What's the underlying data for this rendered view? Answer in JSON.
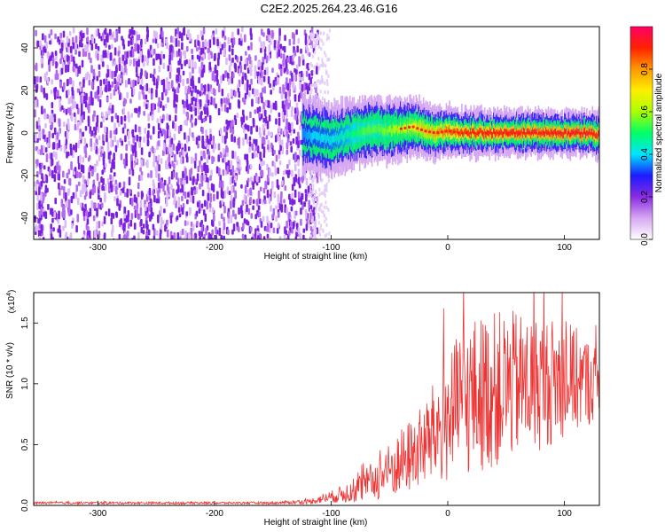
{
  "title": "C2E2.2025.264.23.46.G16",
  "chart_data": [
    {
      "type": "heatmap",
      "xlabel": "Height of straight line (km)",
      "ylabel": "Frequency (Hz)",
      "xlim": [
        -355,
        130
      ],
      "ylim": [
        -50,
        50
      ],
      "xticks": [
        -300,
        -200,
        -100,
        0,
        100
      ],
      "yticks": [
        -40,
        -20,
        0,
        20,
        40
      ],
      "colorbar": {
        "label": "Normalized spectral amplitude",
        "range": [
          0,
          1
        ],
        "ticks": [
          "0.0",
          "0.2",
          "0.4",
          "0.6",
          "0.8"
        ],
        "tick_values": [
          0.0,
          0.2,
          0.4,
          0.6,
          0.8
        ],
        "colors": [
          "#ffffff",
          "#d6a8f2",
          "#8a2be2",
          "#1b1bff",
          "#00e5ff",
          "#00ff66",
          "#aaff00",
          "#ffee00",
          "#ff9900",
          "#ff2200",
          "#ff0066"
        ]
      },
      "noise_region_x": [
        -355,
        -120
      ],
      "signal_track": {
        "x": [
          -125,
          -115,
          -100,
          -90,
          -80,
          -70,
          -60,
          -50,
          -40,
          -30,
          -20,
          -10,
          0,
          10,
          20,
          40,
          60,
          80,
          100,
          120,
          130
        ],
        "center_hz": [
          0,
          -2,
          -3,
          -2,
          0,
          1,
          2,
          1,
          2,
          3,
          1,
          0,
          1,
          0,
          0,
          0,
          0,
          0,
          0,
          0,
          -1
        ],
        "peak_amp": [
          0.35,
          0.4,
          0.42,
          0.45,
          0.5,
          0.55,
          0.55,
          0.6,
          0.65,
          0.7,
          0.75,
          0.8,
          0.85,
          0.88,
          0.9,
          0.92,
          0.93,
          0.93,
          0.94,
          0.95,
          0.9
        ]
      }
    },
    {
      "type": "line",
      "xlabel": "Height of straight line (km)",
      "ylabel": "SNR (10 * v/v)",
      "scale_label": "(x10",
      "scale_exp": "4",
      "xlim": [
        -355,
        130
      ],
      "ylim": [
        0,
        1.75
      ],
      "xticks": [
        -300,
        -200,
        -100,
        0,
        100
      ],
      "yticks": [
        "0.0",
        "0.5",
        "1.0",
        "1.5"
      ],
      "ytick_values": [
        0,
        0.5,
        1.0,
        1.5
      ],
      "color": "#ee3333",
      "envelope": {
        "x": [
          -355,
          -150,
          -120,
          -100,
          -80,
          -60,
          -40,
          -20,
          0,
          20,
          40,
          60,
          80,
          100,
          130
        ],
        "mean": [
          0.02,
          0.02,
          0.03,
          0.07,
          0.12,
          0.22,
          0.35,
          0.5,
          0.72,
          0.9,
          0.95,
          1.0,
          1.0,
          1.05,
          1.0
        ],
        "amp": [
          0.01,
          0.01,
          0.02,
          0.05,
          0.1,
          0.18,
          0.28,
          0.35,
          0.55,
          0.65,
          0.65,
          0.6,
          0.55,
          0.5,
          0.3
        ]
      }
    }
  ]
}
